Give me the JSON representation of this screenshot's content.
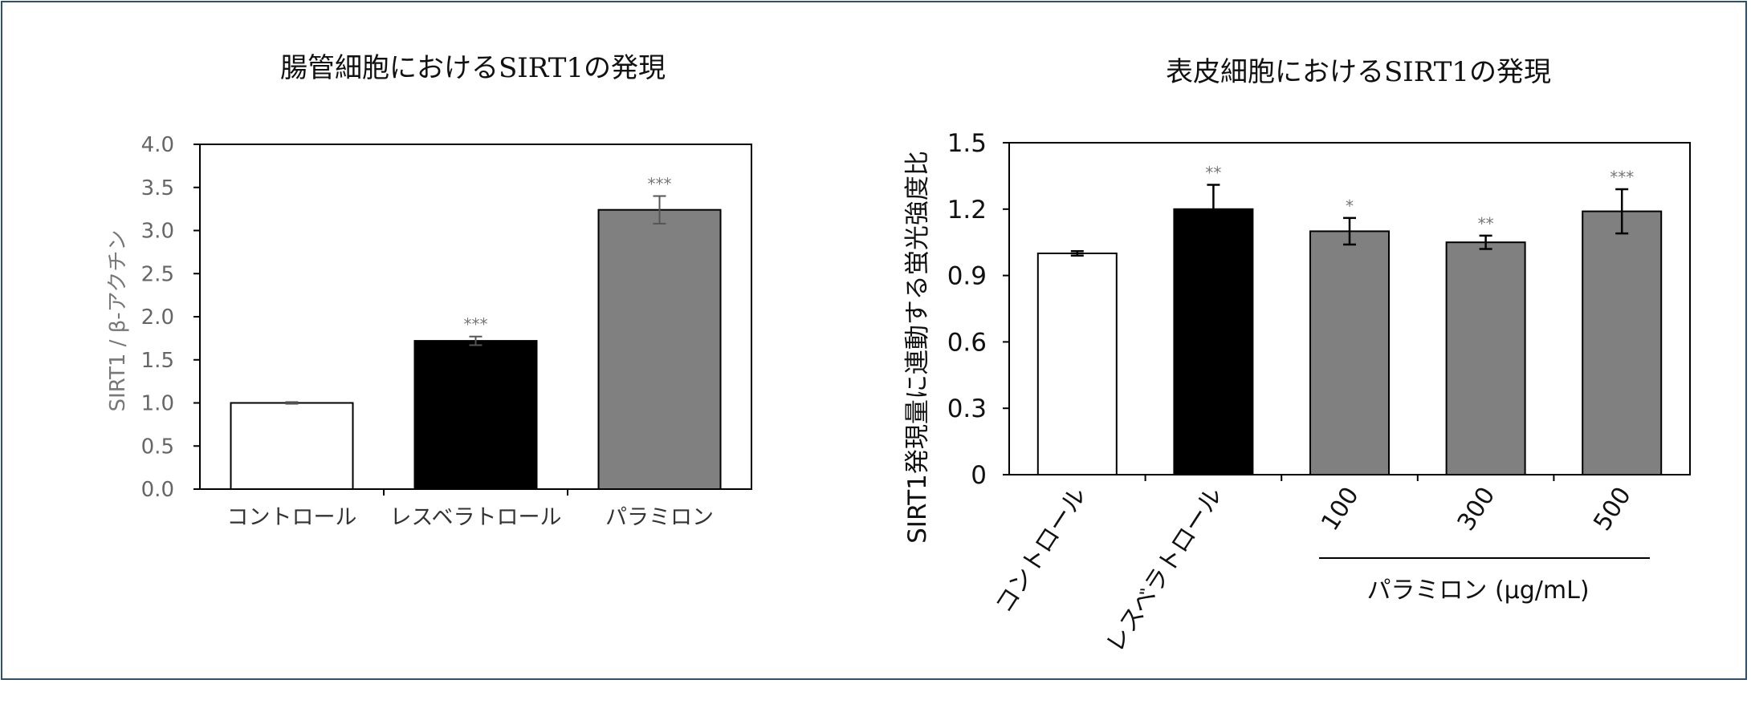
{
  "chart_data": [
    {
      "type": "bar",
      "title": "腸管細胞におけるSIRT1の発現",
      "ylabel": "SIRT1 / β-アクチン",
      "xlabel": "",
      "ylim": [
        0,
        4.0
      ],
      "yticks": [
        "0.0",
        "0.5",
        "1.0",
        "1.5",
        "2.0",
        "2.5",
        "3.0",
        "3.5",
        "4.0"
      ],
      "categories": [
        "コントロール",
        "レスベラトロール",
        "パラミロン"
      ],
      "values": [
        1.0,
        1.72,
        3.24
      ],
      "errors": [
        0.01,
        0.05,
        0.16
      ],
      "significance": [
        "",
        "***",
        "***"
      ],
      "bar_colors": [
        "#ffffff",
        "#000000",
        "#808080"
      ],
      "grid": false
    },
    {
      "type": "bar",
      "title": "表皮細胞におけるSIRT1の発現",
      "ylabel": "SIRT1発現量に連動する蛍光強度比",
      "xlabel": "",
      "ylim": [
        0,
        1.5
      ],
      "yticks": [
        "0",
        "0.3",
        "0.6",
        "0.9",
        "1.2",
        "1.5"
      ],
      "categories": [
        "コントロール",
        "レスベラトロール",
        "100",
        "300",
        "500"
      ],
      "values": [
        1.0,
        1.2,
        1.1,
        1.05,
        1.19
      ],
      "errors": [
        0.01,
        0.11,
        0.06,
        0.03,
        0.1
      ],
      "significance": [
        "",
        "**",
        "*",
        "**",
        "***"
      ],
      "bar_colors": [
        "#ffffff",
        "#000000",
        "#808080",
        "#808080",
        "#808080"
      ],
      "group_label": "パラミロン (μg/mL)",
      "grid": false
    }
  ]
}
